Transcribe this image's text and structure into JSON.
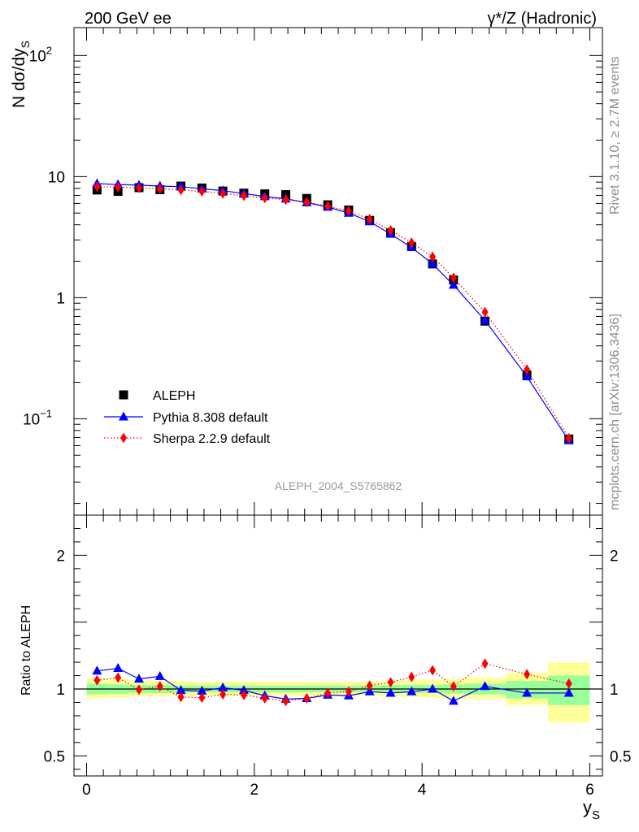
{
  "header": {
    "energy": "200 GeV ee",
    "process": "γ*/Z (Hadronic)"
  },
  "side": {
    "rivet": "Rivet 3.1.10, ≥ 2.7M events",
    "mcplots": "mcplots.cern.ch [arXiv:1306.3436]"
  },
  "watermark": "ALEPH_2004_S5765862",
  "chart_data": [
    {
      "type": "scatter",
      "ylabel": "N dσ/dy",
      "ylabel_sub": "S",
      "xlabel": "y",
      "xlabel_sub": "S",
      "yscale": "log",
      "xlim": [
        -0.15,
        6.15
      ],
      "ylim": [
        0.016,
        170
      ],
      "yticks": [
        {
          "value": 0.1,
          "base": "10",
          "exp": "−1"
        },
        {
          "value": 1,
          "base": "1",
          "exp": ""
        },
        {
          "value": 10,
          "base": "10",
          "exp": ""
        },
        {
          "value": 100,
          "base": "10",
          "exp": "2"
        }
      ],
      "legend_position": "bottom-left",
      "x": [
        0.125,
        0.375,
        0.625,
        0.875,
        1.125,
        1.375,
        1.625,
        1.875,
        2.125,
        2.375,
        2.625,
        2.875,
        3.125,
        3.375,
        3.625,
        3.875,
        4.125,
        4.375,
        4.75,
        5.25,
        5.75
      ],
      "series": [
        {
          "name": "ALEPH",
          "color": "#000000",
          "marker": "square",
          "line": "none",
          "values": [
            7.75,
            7.55,
            8.1,
            7.8,
            8.35,
            8.05,
            7.6,
            7.3,
            7.2,
            7.1,
            6.6,
            5.85,
            5.3,
            4.35,
            3.45,
            2.65,
            1.9,
            1.4,
            0.64,
            0.23,
            0.068
          ]
        },
        {
          "name": "Pythia 8.308 default",
          "color": "#0000ff",
          "marker": "triangle",
          "line": "solid",
          "values": [
            8.75,
            8.6,
            8.5,
            8.35,
            8.25,
            7.95,
            7.65,
            7.25,
            6.85,
            6.55,
            6.1,
            5.6,
            5.0,
            4.25,
            3.35,
            2.6,
            1.9,
            1.27,
            0.65,
            0.223,
            0.066
          ]
        },
        {
          "name": "Sherpa 2.2.9 default",
          "color": "#ff0000",
          "marker": "diamond",
          "line": "dotted",
          "values": [
            8.25,
            8.2,
            8.05,
            7.95,
            7.75,
            7.55,
            7.25,
            6.95,
            6.65,
            6.45,
            6.15,
            5.7,
            5.2,
            4.45,
            3.6,
            2.85,
            2.18,
            1.46,
            0.76,
            0.255,
            0.069
          ]
        }
      ]
    },
    {
      "type": "scatter",
      "ylabel": "Ratio to ALEPH",
      "xlabel": "y",
      "xlabel_sub": "S",
      "xlim": [
        -0.15,
        6.15
      ],
      "ylim": [
        0.35,
        2.3
      ],
      "xticks": [
        "0",
        "2",
        "4",
        "6"
      ],
      "yticks": [
        {
          "value": 0.5,
          "label": "0.5"
        },
        {
          "value": 1,
          "label": "1"
        },
        {
          "value": 2,
          "label": "2"
        }
      ],
      "bands": {
        "x_edges": [
          0,
          0.25,
          0.5,
          0.75,
          1.0,
          1.25,
          1.5,
          1.75,
          2.0,
          2.25,
          2.5,
          2.75,
          3.0,
          3.25,
          3.5,
          3.75,
          4.0,
          4.25,
          4.5,
          5.0,
          5.5,
          6.0
        ],
        "green": [
          [
            0.96,
            1.04
          ],
          [
            0.965,
            1.035
          ],
          [
            0.97,
            1.03
          ],
          [
            0.97,
            1.03
          ],
          [
            0.975,
            1.025
          ],
          [
            0.975,
            1.025
          ],
          [
            0.975,
            1.025
          ],
          [
            0.975,
            1.025
          ],
          [
            0.975,
            1.025
          ],
          [
            0.975,
            1.025
          ],
          [
            0.975,
            1.025
          ],
          [
            0.975,
            1.025
          ],
          [
            0.975,
            1.025
          ],
          [
            0.975,
            1.025
          ],
          [
            0.97,
            1.03
          ],
          [
            0.97,
            1.03
          ],
          [
            0.97,
            1.03
          ],
          [
            0.965,
            1.035
          ],
          [
            0.96,
            1.04
          ],
          [
            0.93,
            1.06
          ],
          [
            0.88,
            1.1
          ]
        ],
        "yellow": [
          [
            0.93,
            1.08
          ],
          [
            0.935,
            1.075
          ],
          [
            0.945,
            1.065
          ],
          [
            0.945,
            1.06
          ],
          [
            0.95,
            1.06
          ],
          [
            0.95,
            1.055
          ],
          [
            0.95,
            1.055
          ],
          [
            0.95,
            1.055
          ],
          [
            0.95,
            1.055
          ],
          [
            0.95,
            1.055
          ],
          [
            0.95,
            1.055
          ],
          [
            0.95,
            1.055
          ],
          [
            0.95,
            1.055
          ],
          [
            0.95,
            1.055
          ],
          [
            0.945,
            1.06
          ],
          [
            0.94,
            1.065
          ],
          [
            0.935,
            1.07
          ],
          [
            0.93,
            1.075
          ],
          [
            0.925,
            1.085
          ],
          [
            0.88,
            1.12
          ],
          [
            0.75,
            1.2
          ]
        ]
      },
      "x": [
        0.125,
        0.375,
        0.625,
        0.875,
        1.125,
        1.375,
        1.625,
        1.875,
        2.125,
        2.375,
        2.625,
        2.875,
        3.125,
        3.375,
        3.625,
        3.875,
        4.125,
        4.375,
        4.75,
        5.25,
        5.75
      ],
      "series": [
        {
          "name": "Pythia 8.308 default",
          "color": "#0000ff",
          "marker": "triangle",
          "line": "solid",
          "values": [
            1.135,
            1.155,
            1.075,
            1.095,
            0.99,
            0.985,
            1.01,
            0.99,
            0.95,
            0.925,
            0.93,
            0.955,
            0.95,
            0.98,
            0.97,
            0.98,
            1.0,
            0.91,
            1.02,
            0.97,
            0.97
          ]
        },
        {
          "name": "Sherpa 2.2.9 default",
          "color": "#ff0000",
          "marker": "diamond",
          "line": "dotted",
          "values": [
            1.065,
            1.085,
            0.995,
            1.02,
            0.94,
            0.935,
            0.96,
            0.955,
            0.93,
            0.91,
            0.93,
            0.97,
            0.98,
            1.025,
            1.05,
            1.09,
            1.14,
            1.02,
            1.19,
            1.11,
            1.04
          ]
        }
      ]
    }
  ]
}
